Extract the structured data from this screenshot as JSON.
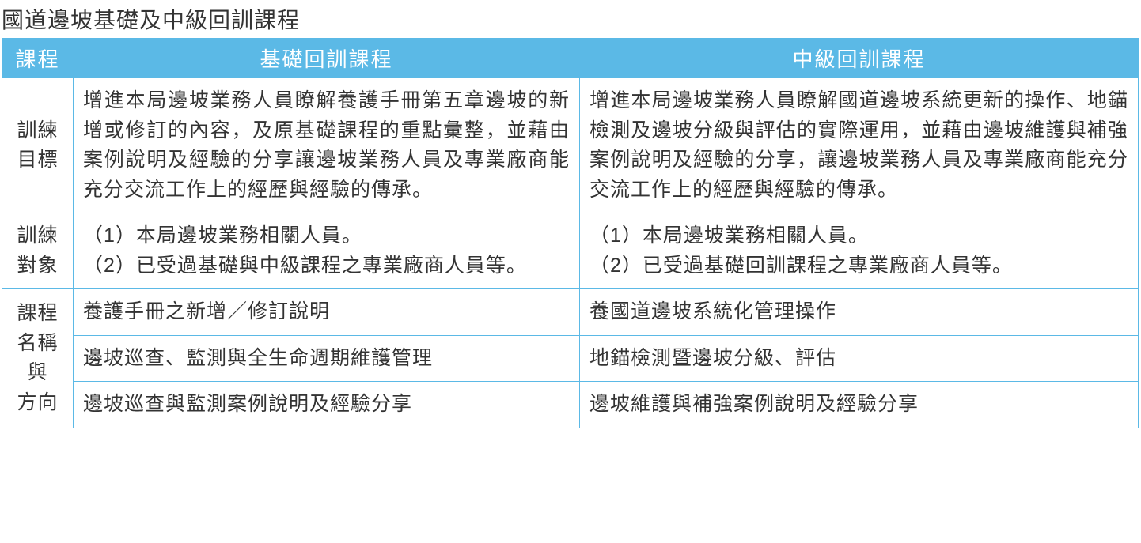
{
  "title": "國道邊坡基礎及中級回訓課程",
  "colors": {
    "header_bg": "#5bb9e6",
    "header_text": "#ffffff",
    "border": "#5bb9e6",
    "body_text": "#333333",
    "background": "#ffffff"
  },
  "typography": {
    "title_fontsize": 28,
    "header_fontsize": 26,
    "cell_fontsize": 25,
    "font_family": "Microsoft JhengHei"
  },
  "table": {
    "columns": {
      "row_header": "課程",
      "basic": "基礎回訓課程",
      "intermediate": "中級回訓課程"
    },
    "column_widths": {
      "row_header": 90,
      "basic": 640,
      "intermediate": 706
    },
    "rows": {
      "objective": {
        "label": "訓練目標",
        "basic": "增進本局邊坡業務人員瞭解養護手冊第五章邊坡的新增或修訂的內容，及原基礎課程的重點彙整，並藉由案例說明及經驗的分享讓邊坡業務人員及專業廠商能充分交流工作上的經歷與經驗的傳承。",
        "intermediate": "增進本局邊坡業務人員瞭解國道邊坡系統更新的操作、地錨檢測及邊坡分級與評估的實際運用，並藉由邊坡維護與補強案例說明及經驗的分享，讓邊坡業務人員及專業廠商能充分交流工作上的經歷與經驗的傳承。"
      },
      "target": {
        "label": "訓練對象",
        "basic_items": [
          "（1）本局邊坡業務相關人員。",
          "（2）已受過基礎與中級課程之專業廠商人員等。"
        ],
        "intermediate_items": [
          "（1）本局邊坡業務相關人員。",
          "（2）已受過基礎回訓課程之專業廠商人員等。"
        ]
      },
      "courses": {
        "label": "課程名稱與方向",
        "basic_list": [
          "養護手冊之新增／修訂說明",
          "邊坡巡查、監測與全生命週期維護管理",
          "邊坡巡查與監測案例說明及經驗分享"
        ],
        "intermediate_list": [
          "養國道邊坡系統化管理操作",
          "地錨檢測暨邊坡分級、評估",
          "邊坡維護與補強案例說明及經驗分享"
        ]
      }
    }
  }
}
